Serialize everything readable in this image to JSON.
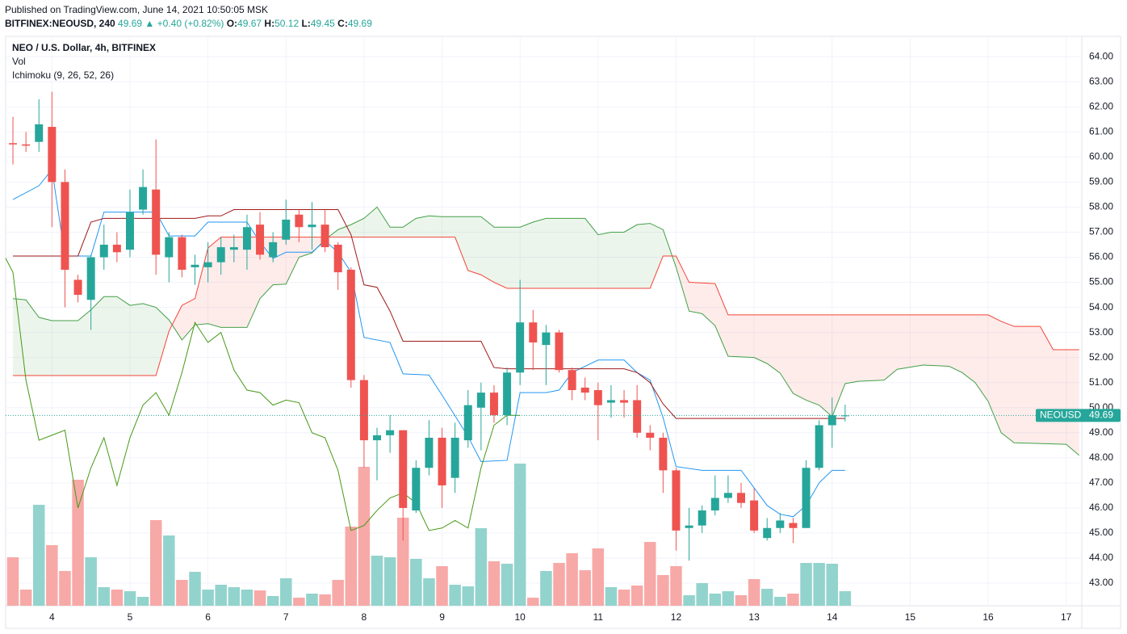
{
  "chart_data": {
    "type": "candlestick",
    "published": "Published on TradingView.com, June 14, 2021 10:50:05 MSK",
    "symbol": "BITFINEX:NEOUSD, 240",
    "change": "▲ +0.40 (+0.82%)",
    "ohlc_labels": [
      "O:",
      "H:",
      "L:",
      "C:"
    ],
    "title": "NEO / U.S. Dollar, 4h, BITFINEX",
    "legend": [
      "Vol",
      "Ichimoku (9, 26, 52, 26)"
    ],
    "price_tag": "NEOUSD",
    "up_color": "#26a69a",
    "down_color": "#ef5350",
    "volume_up_color": "#93d3cd",
    "volume_down_color": "#f7a9a7",
    "grid": true,
    "xlim": [
      -0.56,
      82.2
    ],
    "xticks": [
      {
        "value": 3,
        "label": "4"
      },
      {
        "value": 9,
        "label": "5"
      },
      {
        "value": 15,
        "label": "6"
      },
      {
        "value": 21,
        "label": "7"
      },
      {
        "value": 27,
        "label": "8"
      },
      {
        "value": 33,
        "label": "9"
      },
      {
        "value": 39,
        "label": "10"
      },
      {
        "value": 45,
        "label": "11"
      },
      {
        "value": 51,
        "label": "12"
      },
      {
        "value": 57,
        "label": "13"
      },
      {
        "value": 63,
        "label": "14"
      },
      {
        "value": 69,
        "label": "15"
      },
      {
        "value": 75,
        "label": "16"
      },
      {
        "value": 81,
        "label": "17"
      }
    ],
    "ylim": [
      42.1,
      64.81
    ],
    "yticks": [
      {
        "value": 43,
        "label": "43.00"
      },
      {
        "value": 44,
        "label": "44.00"
      },
      {
        "value": 45,
        "label": "45.00"
      },
      {
        "value": 46,
        "label": "46.00"
      },
      {
        "value": 47,
        "label": "47.00"
      },
      {
        "value": 48,
        "label": "48.00"
      },
      {
        "value": 49,
        "label": "49.00"
      },
      {
        "value": 50,
        "label": "50.00"
      },
      {
        "value": 51,
        "label": "51.00"
      },
      {
        "value": 52,
        "label": "52.00"
      },
      {
        "value": 53,
        "label": "53.00"
      },
      {
        "value": 54,
        "label": "54.00"
      },
      {
        "value": 55,
        "label": "55.00"
      },
      {
        "value": 56,
        "label": "56.00"
      },
      {
        "value": 57,
        "label": "57.00"
      },
      {
        "value": 58,
        "label": "58.00"
      },
      {
        "value": 59,
        "label": "59.00"
      },
      {
        "value": 60,
        "label": "60.00"
      },
      {
        "value": 61,
        "label": "61.00"
      },
      {
        "value": 62,
        "label": "62.00"
      },
      {
        "value": 63,
        "label": "63.00"
      },
      {
        "value": 64,
        "label": "64.00"
      }
    ],
    "y2lim": [
      0,
      705
    ],
    "open": [
      60.55,
      60.5,
      60.6,
      61.2,
      59.0,
      55.1,
      54.3,
      56.0,
      56.5,
      56.3,
      57.9,
      58.7,
      56.0,
      56.8,
      55.6,
      55.6,
      55.8,
      56.3,
      56.3,
      57.3,
      56.0,
      56.7,
      57.7,
      57.2,
      57.3,
      56.5,
      55.5,
      51.1,
      48.7,
      48.9,
      49.1,
      45.9,
      47.6,
      48.8,
      47.2,
      48.7,
      50.0,
      50.6,
      49.7,
      51.4,
      53.4,
      52.5,
      53.0,
      51.5,
      50.8,
      50.7,
      50.2,
      50.3,
      50.3,
      49.0,
      48.8,
      47.5,
      45.2,
      45.3,
      45.9,
      46.4,
      46.6,
      46.3,
      44.8,
      45.2,
      45.4,
      45.2,
      47.6,
      49.3,
      49.67
    ],
    "high": [
      61.6,
      61.0,
      62.3,
      62.6,
      59.5,
      55.3,
      56.1,
      57.3,
      57.0,
      58.7,
      59.5,
      60.7,
      57.0,
      56.9,
      56.1,
      56.6,
      56.8,
      56.9,
      57.7,
      57.8,
      57.0,
      58.3,
      57.9,
      58.2,
      57.9,
      56.6,
      55.6,
      51.3,
      49.2,
      49.7,
      49.1,
      47.9,
      49.5,
      49.2,
      49.4,
      50.7,
      51.0,
      50.9,
      51.6,
      55.1,
      53.9,
      53.3,
      53.1,
      51.6,
      51.2,
      51.0,
      50.9,
      50.7,
      50.9,
      49.3,
      49.0,
      47.6,
      46.0,
      46.1,
      47.3,
      47.3,
      47.0,
      46.8,
      45.6,
      45.8,
      45.6,
      47.9,
      49.5,
      50.4,
      50.12
    ],
    "low": [
      59.7,
      60.2,
      60.2,
      57.2,
      54.0,
      54.2,
      53.1,
      55.5,
      55.8,
      56.0,
      57.7,
      55.3,
      55.0,
      55.2,
      54.9,
      55.0,
      55.3,
      55.8,
      55.5,
      55.9,
      55.8,
      56.5,
      56.6,
      56.3,
      56.2,
      54.7,
      50.8,
      47.6,
      47.1,
      48.2,
      44.7,
      45.8,
      47.3,
      46.0,
      46.6,
      48.4,
      48.3,
      49.4,
      49.3,
      50.9,
      51.5,
      50.9,
      51.4,
      50.3,
      50.3,
      48.7,
      49.6,
      49.6,
      48.8,
      48.3,
      46.6,
      44.3,
      43.9,
      45.0,
      45.7,
      46.2,
      46.0,
      45.0,
      44.7,
      45.0,
      44.6,
      45.2,
      47.5,
      48.4,
      49.45
    ],
    "close": [
      60.5,
      60.45,
      61.3,
      59.0,
      55.5,
      54.5,
      56.0,
      56.5,
      56.2,
      57.8,
      58.8,
      56.1,
      56.8,
      55.5,
      55.7,
      55.8,
      56.4,
      56.4,
      57.2,
      56.1,
      56.6,
      57.5,
      57.2,
      57.3,
      56.4,
      55.4,
      51.1,
      48.7,
      48.9,
      49.1,
      46.0,
      47.6,
      48.8,
      46.9,
      48.8,
      50.1,
      50.6,
      49.7,
      51.4,
      53.4,
      52.6,
      53.0,
      51.5,
      50.7,
      50.6,
      50.1,
      50.3,
      50.2,
      49.0,
      48.8,
      47.5,
      45.1,
      45.3,
      45.9,
      46.4,
      46.6,
      46.2,
      45.1,
      45.2,
      45.5,
      45.2,
      47.6,
      49.3,
      49.7,
      49.69
    ],
    "volume": [
      60,
      20,
      125,
      75,
      43,
      156,
      60,
      23,
      20,
      18,
      11,
      106,
      87,
      32,
      42,
      20,
      26,
      23,
      20,
      19,
      12,
      34,
      10,
      15,
      14,
      32,
      98,
      172,
      62,
      60,
      109,
      58,
      34,
      49,
      26,
      24,
      96,
      55,
      52,
      176,
      10,
      43,
      53,
      65,
      44,
      71,
      23,
      20,
      25,
      79,
      38,
      49,
      13,
      28,
      15,
      18,
      13,
      33,
      21,
      11,
      15,
      53,
      53,
      52,
      18
    ],
    "lines": [
      {
        "color": "#2196f3",
        "x": [
          0,
          2,
          3,
          4,
          6,
          7,
          11,
          12,
          14,
          15,
          18,
          19,
          20,
          21,
          23,
          24,
          25,
          26,
          27,
          29,
          30,
          32,
          33,
          35,
          36,
          38,
          39,
          41,
          42,
          43,
          45,
          47,
          48,
          49,
          50,
          51,
          53,
          56,
          57,
          58,
          59,
          60,
          61,
          62,
          63,
          64
        ],
        "values": [
          58.3,
          58.85,
          59.5,
          56.05,
          56.05,
          57.8,
          57.8,
          56.85,
          56.85,
          57.4,
          57.4,
          56.6,
          55.95,
          56.2,
          56.2,
          56.65,
          56.2,
          55.4,
          52.8,
          52.6,
          51.35,
          51.3,
          50.5,
          48.85,
          47.85,
          47.9,
          50.6,
          50.6,
          50.7,
          51.4,
          51.9,
          51.9,
          51.4,
          51.1,
          49.6,
          47.65,
          47.5,
          47.5,
          46.8,
          46.1,
          45.75,
          45.65,
          46.1,
          47.0,
          47.5,
          47.5
        ]
      },
      {
        "color": "#a01818",
        "x": [
          0,
          5,
          6,
          7,
          14,
          15,
          16,
          17,
          25,
          26,
          27,
          28,
          29,
          30,
          36,
          37,
          38,
          47,
          48,
          49,
          50,
          51,
          64
        ],
        "values": [
          56.05,
          56.05,
          57.4,
          57.55,
          57.55,
          57.65,
          57.65,
          57.9,
          57.9,
          56.9,
          54.9,
          54.8,
          53.85,
          52.65,
          52.65,
          51.6,
          51.55,
          51.55,
          51.4,
          51.0,
          50.15,
          49.57,
          49.57
        ]
      },
      {
        "color": "#459915",
        "x": [
          -1,
          0,
          1,
          2,
          3,
          4,
          5,
          6,
          7,
          8,
          9,
          10,
          11,
          12,
          13,
          14,
          15,
          16,
          17,
          18,
          19,
          20,
          21,
          22,
          23,
          24,
          25,
          26,
          27,
          28,
          29,
          30,
          31,
          32,
          33,
          34,
          35,
          36,
          37,
          38,
          39
        ],
        "values": [
          56.4,
          55.4,
          51.1,
          48.7,
          48.9,
          49.1,
          46.0,
          47.6,
          48.8,
          46.9,
          48.8,
          50.1,
          50.6,
          49.7,
          51.4,
          53.4,
          52.6,
          53.0,
          51.5,
          50.7,
          50.6,
          50.1,
          50.3,
          50.2,
          49.0,
          48.8,
          47.5,
          45.1,
          45.3,
          45.9,
          46.4,
          46.6,
          46.2,
          45.1,
          45.2,
          45.5,
          45.2,
          47.6,
          49.3,
          49.7,
          49.69
        ]
      }
    ],
    "cloud": {
      "up_fill": "rgba(67,160,71,0.1)",
      "down_fill": "rgba(244,67,54,0.1)",
      "a": {
        "color": "#43a047",
        "x": [
          0,
          1,
          2,
          3,
          5,
          6,
          7,
          8,
          9,
          10,
          11,
          12,
          13,
          14,
          15,
          16,
          18,
          19,
          20,
          21,
          22,
          23,
          24,
          25,
          26,
          27,
          28,
          29,
          30,
          31,
          32,
          33,
          36,
          37,
          39,
          40,
          41,
          44,
          45,
          46,
          47,
          48,
          49,
          50,
          51,
          52,
          53,
          54,
          55,
          57,
          58,
          59,
          60,
          61,
          62,
          63,
          64,
          65,
          67,
          68,
          70,
          72,
          73,
          74,
          75,
          76,
          77,
          81,
          82
        ],
        "values": [
          54.35,
          54.3,
          53.6,
          53.47,
          53.47,
          53.9,
          54.43,
          54.43,
          54.08,
          54.15,
          54.0,
          53.5,
          52.7,
          53.3,
          53.35,
          53.2,
          53.2,
          54.35,
          54.9,
          54.93,
          56.0,
          56.17,
          56.7,
          57.1,
          57.3,
          57.55,
          58.0,
          57.2,
          57.2,
          57.55,
          57.65,
          57.62,
          57.62,
          57.2,
          57.2,
          57.4,
          57.55,
          57.55,
          56.9,
          57.0,
          57.0,
          57.3,
          57.35,
          57.1,
          55.6,
          53.85,
          53.75,
          53.27,
          52.05,
          52.0,
          51.76,
          51.38,
          50.57,
          50.3,
          50.1,
          49.64,
          50.96,
          51.05,
          51.1,
          51.53,
          51.7,
          51.65,
          51.4,
          51.0,
          50.25,
          49.0,
          48.6,
          48.54,
          48.1
        ]
      },
      "b": {
        "color": "#f44336",
        "x": [
          0,
          11,
          12,
          13,
          14,
          15,
          16,
          34,
          35,
          36,
          37,
          38,
          49,
          50,
          51,
          52,
          54,
          55,
          75,
          76,
          77,
          79,
          80,
          82
        ],
        "values": [
          51.28,
          51.28,
          53.05,
          54.08,
          54.35,
          56.37,
          56.8,
          56.8,
          55.47,
          55.3,
          55.0,
          54.76,
          54.76,
          56.05,
          56.05,
          55.0,
          54.95,
          53.7,
          53.7,
          53.44,
          53.24,
          53.24,
          52.31,
          52.31
        ]
      }
    }
  }
}
